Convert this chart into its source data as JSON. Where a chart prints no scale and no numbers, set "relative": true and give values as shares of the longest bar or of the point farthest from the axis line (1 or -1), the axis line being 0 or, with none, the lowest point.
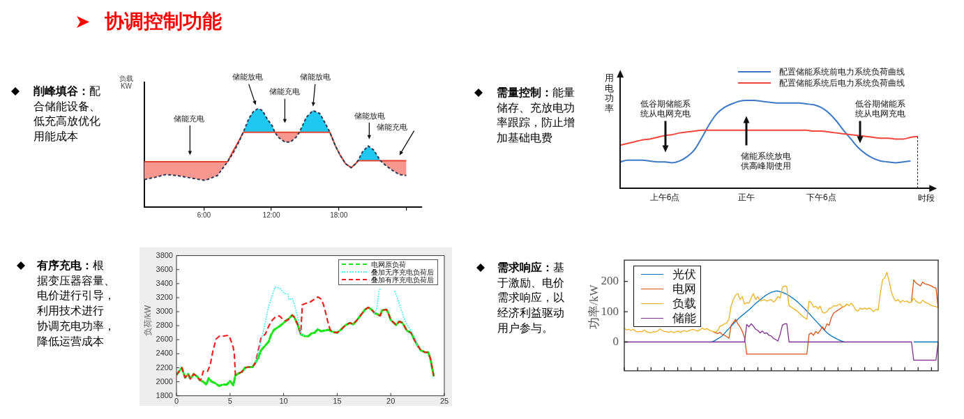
{
  "chart_data": [
    {
      "type": "other",
      "title": "协调控制功能"
    },
    {
      "type": "line",
      "title": "削峰填谷：配合储能设备、低充高放优化用能成本",
      "ylabel": "负载 KW",
      "relative": true,
      "x": [
        0.7,
        1.6,
        2.6,
        3.6,
        4.6,
        5.6,
        6.1,
        7.2,
        8.1,
        8.6,
        9.1,
        9.5,
        10.0,
        10.4,
        10.8,
        11.2,
        11.6,
        12.1,
        12.3,
        12.6,
        13.2,
        13.7,
        14.2,
        14.5,
        15.1,
        15.7,
        16.3,
        16.8,
        17.2,
        17.7,
        18.1,
        18.6,
        19.1,
        19.5,
        19.7,
        20.1,
        20.6,
        21.1,
        21.7,
        22.2,
        22.8,
        23.4,
        24.0
      ],
      "xlim": [
        0.7,
        25.4
      ],
      "xticks": [
        {
          "value": 6,
          "label": "6:00"
        },
        {
          "value": 12,
          "label": "12:00"
        },
        {
          "value": 18,
          "label": "18:00"
        },
        {
          "value": 24,
          "label": null
        }
      ],
      "series": [
        {
          "type": "area",
          "color": "#1ec8f0",
          "values": [
            null,
            null,
            null,
            null,
            null,
            null,
            null,
            null,
            null,
            null,
            null,
            0.76,
            0.9,
            0.97,
            1,
            0.98,
            0.9,
            0.82,
            0.76,
            null,
            null,
            null,
            null,
            0.76,
            0.91,
            0.98,
            0.95,
            0.85,
            0.76,
            null,
            null,
            null,
            null,
            null,
            0.47,
            0.56,
            0.62,
            0.58,
            0.47,
            null,
            null,
            null,
            null
          ]
        },
        {
          "type": "area",
          "color": "#f79890",
          "values": [
            0.46,
            0.46,
            0.46,
            0.46,
            0.46,
            0.46,
            0.46,
            0.46,
            0.46,
            0.57,
            0.67,
            0.76,
            null,
            null,
            null,
            null,
            null,
            null,
            0.76,
            0.76,
            0.76,
            0.76,
            0.76,
            0.76,
            null,
            null,
            null,
            null,
            null,
            null,
            null,
            null,
            null,
            null,
            null,
            null,
            null,
            null,
            0.47,
            0.47,
            0.47,
            0.47,
            0.47
          ]
        },
        {
          "type": "line",
          "color": "#e8432f",
          "values": [
            0.46,
            0.46,
            0.46,
            0.46,
            0.46,
            0.46,
            0.46,
            0.46,
            0.46,
            0.57,
            0.67,
            0.76,
            0.76,
            0.76,
            0.76,
            0.76,
            0.76,
            0.76,
            0.76,
            0.76,
            0.76,
            0.76,
            0.76,
            0.76,
            0.76,
            0.76,
            0.76,
            0.76,
            0.76,
            0.62,
            0.53,
            0.44,
            0.4,
            0.44,
            0.47,
            0.47,
            0.47,
            0.47,
            0.47,
            0.47,
            0.47,
            0.47,
            0.47
          ]
        },
        {
          "type": "line",
          "color": "#2a3654",
          "line_style": "dashed",
          "values": [
            0.28,
            0.3,
            0.33,
            0.32,
            0.3,
            0.28,
            0.27,
            0.32,
            0.46,
            0.55,
            0.66,
            0.76,
            0.9,
            0.97,
            1,
            0.98,
            0.9,
            0.82,
            0.76,
            0.71,
            0.66,
            0.66,
            0.71,
            0.76,
            0.91,
            0.98,
            0.95,
            0.85,
            0.76,
            0.62,
            0.53,
            0.44,
            0.4,
            0.44,
            0.47,
            0.56,
            0.62,
            0.58,
            0.47,
            0.42,
            0.37,
            0.33,
            0.32
          ]
        }
      ],
      "annotations": [
        "储能充电",
        "储能放电",
        "储能充电",
        "储能放电",
        "储能放电",
        "储能充电"
      ]
    },
    {
      "type": "line",
      "title": "需量控制：能量储存、充放电功率跟踪，防止增加基础电费",
      "ylabel": "用电功率",
      "xlabel": "时段",
      "relative": true,
      "categories": [
        null,
        null,
        null,
        null,
        null,
        null,
        "上午6点",
        null,
        null,
        null,
        null,
        null,
        null,
        null,
        null,
        null,
        null,
        "正午",
        null,
        null,
        null,
        null,
        null,
        null,
        null,
        null,
        null,
        "下午6点",
        null,
        null,
        null,
        null,
        null,
        null,
        null,
        null,
        null,
        null,
        null,
        null,
        null
      ],
      "legend": "top right",
      "series": [
        {
          "name": "配置储能系统前电力系统负荷曲线",
          "color": "#3b78c5",
          "values": [
            0.3,
            0.32,
            0.32,
            0.32,
            0.31,
            0.3,
            0.3,
            0.29,
            0.31,
            0.36,
            0.44,
            0.58,
            0.73,
            0.85,
            0.92,
            0.96,
            0.99,
            1,
            1,
            0.99,
            0.98,
            0.97,
            0.97,
            0.97,
            0.97,
            0.96,
            0.95,
            0.92,
            0.86,
            0.77,
            0.66,
            0.56,
            0.46,
            0.39,
            0.34,
            0.31,
            0.3,
            0.29,
            0.3,
            0.31,
            null
          ]
        },
        {
          "name": "配置储能系统后电力系统负荷曲线",
          "color": "#f0453a",
          "values": [
            0.49,
            0.51,
            0.53,
            0.55,
            0.56,
            0.58,
            0.6,
            0.61,
            0.63,
            0.64,
            0.65,
            0.66,
            0.66,
            0.66,
            0.66,
            0.66,
            0.66,
            0.66,
            0.66,
            0.66,
            0.66,
            0.66,
            0.66,
            0.66,
            0.66,
            0.66,
            0.65,
            0.65,
            0.64,
            0.63,
            0.62,
            0.61,
            0.6,
            0.59,
            0.58,
            0.57,
            0.57,
            0.56,
            0.56,
            0.58,
            0.59
          ]
        }
      ],
      "annotations": [
        "低谷期储能系统从电网充电",
        "储能系统放电供高峰期使用",
        "低谷期储能系统从电网充电"
      ]
    },
    {
      "type": "line",
      "title": "有序充电：根据变压器容量、电价进行引导，利用技术进行协调充电功率，降低运营成本",
      "ylabel": "负荷/kW",
      "xlim": [
        0,
        25
      ],
      "xticks": [
        0,
        5,
        10,
        15,
        20,
        25
      ],
      "ylim": [
        1800,
        3800
      ],
      "yticks": [
        1800,
        2000,
        2200,
        2400,
        2600,
        2800,
        3000,
        3200,
        3400,
        3600,
        3800
      ],
      "legend": "top right",
      "series": [
        {
          "name": "电网原负荷",
          "color": "#19e619",
          "line_style": "dashed",
          "x": [
            0,
            0.5,
            0.8,
            1.1,
            1.3,
            1.6,
            1.9,
            2.2,
            2.5,
            2.8,
            3.0,
            3.3,
            3.6,
            4.0,
            4.3,
            4.7,
            5.0,
            5.3,
            5.5,
            5.8,
            6.1,
            6.4,
            6.7,
            7.1,
            7.4,
            7.6,
            7.9,
            8.3,
            8.6,
            8.8,
            9.1,
            9.6,
            10.0,
            10.4,
            10.8,
            11.0,
            11.3,
            11.6,
            12.0,
            12.3,
            12.6,
            12.9,
            13.2,
            13.5,
            13.8,
            14.2,
            14.6,
            15.0,
            15.4,
            15.8,
            16.2,
            16.5,
            16.9,
            17.3,
            17.6,
            17.9,
            18.2,
            18.5,
            18.8,
            19.0,
            19.2,
            19.6,
            19.8,
            20.0,
            20.3,
            20.5,
            20.8,
            21.1,
            21.5,
            21.9,
            22.2,
            22.5,
            22.8,
            23.2,
            23.5,
            23.7,
            24.0
          ],
          "values": [
            2100,
            2200,
            2060,
            2110,
            2040,
            2110,
            2080,
            2020,
            2000,
            1960,
            2050,
            2000,
            1980,
            1940,
            1960,
            1960,
            2010,
            1950,
            2090,
            2120,
            2140,
            2200,
            2210,
            2210,
            2280,
            2330,
            2450,
            2520,
            2570,
            2660,
            2740,
            2790,
            2840,
            2890,
            2950,
            2920,
            2820,
            2680,
            2650,
            2650,
            2690,
            2700,
            2750,
            2720,
            2730,
            2740,
            2710,
            2700,
            2750,
            2810,
            2840,
            2820,
            2890,
            2970,
            3030,
            3060,
            3030,
            2980,
            2960,
            2940,
            3020,
            3030,
            2970,
            2880,
            2840,
            2810,
            2860,
            2840,
            2730,
            2700,
            2600,
            2520,
            2450,
            2420,
            2420,
            2330,
            2090
          ]
        },
        {
          "name": "叠加无序充电负荷后",
          "color": "#4ff0f5",
          "line_style": "dotted",
          "x": [
            7.4,
            7.7,
            8.0,
            8.3,
            8.6,
            8.9,
            9.2,
            9.6,
            9.8,
            10.1,
            10.4,
            10.5,
            10.8,
            11.0,
            11.2,
            11.4,
            11.6,
            12.0,
            12.3,
            18.5,
            18.7,
            18.9,
            19.0,
            19.6,
            20.4,
            20.8,
            21.1,
            21.4,
            21.7,
            22.0,
            22.3,
            22.5
          ],
          "values": [
            2280,
            2450,
            2650,
            2850,
            3080,
            3210,
            3350,
            3340,
            3310,
            3260,
            3250,
            3170,
            3190,
            3110,
            2990,
            2870,
            2690,
            2650,
            null,
            2980,
            3050,
            3290,
            3330,
            null,
            3290,
            3110,
            2970,
            2840,
            2770,
            2700,
            2620,
            2520
          ]
        },
        {
          "name": "叠加有序充电负荷后",
          "color": "#f01e1e",
          "line_style": "dashed",
          "x": [
            0,
            0.5,
            0.8,
            1.1,
            1.3,
            1.6,
            1.9,
            2.2,
            2.3,
            2.5,
            2.7,
            2.9,
            3.15,
            3.4,
            3.7,
            4.0,
            4.35,
            4.7,
            4.9,
            5.1,
            5.3,
            5.4,
            5.5,
            5.8,
            6.1,
            6.4,
            6.7,
            7.1,
            7.4,
            7.5,
            7.7,
            7.9,
            8.3,
            8.6,
            8.9,
            9.2,
            9.6,
            9.8,
            10.1,
            10.4,
            10.8,
            11.0,
            11.3,
            11.6,
            11.75,
            12.1,
            12.5,
            12.9,
            13.2,
            13.5,
            13.7,
            13.9,
            14.1,
            14.35,
            14.6,
            15.0,
            15.4,
            15.8,
            16.2,
            16.5,
            16.9,
            17.3,
            17.6,
            17.9,
            18.2,
            18.5,
            18.8,
            19.0,
            19.2,
            19.6,
            19.8,
            20.0,
            20.3,
            20.5,
            20.8,
            21.1,
            21.5,
            21.9,
            22.2,
            22.5,
            22.8,
            23.2,
            23.5,
            23.7,
            24.0
          ],
          "values": [
            2100,
            2200,
            2060,
            2110,
            2040,
            2110,
            2080,
            2020,
            2040,
            2150,
            2160,
            2150,
            2240,
            2440,
            2610,
            2650,
            2650,
            2660,
            2660,
            2580,
            2490,
            2390,
            2100,
            2120,
            2140,
            2200,
            2210,
            2210,
            2280,
            2360,
            2490,
            2630,
            2680,
            2790,
            2870,
            2920,
            2940,
            2910,
            2870,
            2880,
            2950,
            2920,
            2820,
            2690,
            3100,
            3120,
            3140,
            3180,
            3210,
            3180,
            3110,
            3000,
            2870,
            2740,
            2710,
            2700,
            2750,
            2810,
            2840,
            2820,
            2890,
            2970,
            3030,
            3060,
            3030,
            2980,
            2960,
            2940,
            3020,
            3030,
            2970,
            2880,
            2840,
            2810,
            2860,
            2840,
            2730,
            2700,
            2600,
            2520,
            2450,
            2420,
            2420,
            2330,
            2090
          ]
        }
      ]
    },
    {
      "type": "line",
      "title": "需求响应：基于激励、电价需求响应，以经济利益驱动用户参与。",
      "ylabel": "功率/kW",
      "categories": [
        null,
        null,
        null,
        null,
        null,
        null,
        null,
        null,
        null,
        null,
        null,
        null,
        null,
        null,
        null,
        null,
        null,
        null,
        null,
        null,
        null,
        null,
        null,
        null,
        null,
        null,
        null,
        null,
        null,
        null,
        null,
        null,
        null,
        null,
        null,
        null,
        null,
        null,
        null,
        null,
        null,
        null,
        null,
        null,
        null,
        null,
        null,
        null,
        null,
        null,
        null,
        null,
        null,
        null,
        null,
        null,
        null,
        null,
        null,
        null,
        null,
        null,
        null,
        null,
        null,
        null,
        null,
        null,
        null,
        null,
        null,
        null,
        null,
        null,
        null,
        null,
        null,
        null,
        null,
        null,
        null,
        null,
        null,
        null,
        null,
        null,
        null,
        null,
        null,
        null,
        null,
        null,
        null,
        null,
        null,
        null,
        null,
        null,
        null,
        null,
        null,
        null,
        null,
        null,
        null,
        null,
        null,
        null,
        null,
        null,
        null,
        null,
        null,
        null,
        null,
        null,
        null,
        null,
        null,
        null,
        null,
        null,
        null,
        null,
        null,
        null,
        null,
        null,
        null,
        null,
        null,
        null,
        null,
        null,
        null,
        null,
        null,
        null,
        null,
        null,
        null,
        null
      ],
      "ylim": [
        -95,
        270
      ],
      "yticks": [
        0,
        100,
        200
      ],
      "legend": "top left",
      "series": [
        {
          "name": "光伏",
          "color": "#0072bd",
          "values": [
            null,
            null,
            null,
            null,
            null,
            null,
            null,
            null,
            null,
            null,
            null,
            null,
            null,
            null,
            null,
            null,
            null,
            null,
            null,
            null,
            null,
            null,
            null,
            null,
            null,
            null,
            null,
            null,
            null,
            null,
            null,
            null,
            null,
            null,
            null,
            null,
            null,
            null,
            null,
            0,
            2,
            6,
            11,
            15,
            20,
            28,
            37,
            44,
            52,
            60,
            68,
            75,
            82,
            88,
            94,
            100,
            106,
            113,
            120,
            127,
            133,
            139,
            145,
            151,
            156,
            160,
            164,
            166,
            168,
            168,
            166,
            164,
            161,
            157,
            153,
            148,
            143,
            137,
            131,
            124,
            117,
            110,
            102,
            94,
            86,
            78,
            70,
            62,
            54,
            46,
            38,
            31,
            25,
            20,
            16,
            12,
            8,
            5,
            2,
            0,
            null,
            null,
            null,
            null,
            null,
            null,
            null,
            null,
            null,
            null,
            null,
            null,
            null,
            null,
            null,
            null,
            null,
            null,
            null,
            null,
            null,
            null,
            null,
            null,
            null,
            null,
            null,
            null,
            null,
            null,
            0,
            0,
            0,
            0,
            0,
            0,
            0,
            0,
            0,
            0,
            0,
            0
          ]
        },
        {
          "name": "电网",
          "color": "#d95319",
          "values": [
            null,
            null,
            null,
            null,
            null,
            null,
            null,
            null,
            null,
            null,
            null,
            null,
            null,
            null,
            null,
            null,
            null,
            null,
            null,
            null,
            null,
            null,
            null,
            null,
            null,
            null,
            null,
            null,
            null,
            null,
            null,
            null,
            null,
            null,
            null,
            null,
            null,
            null,
            null,
            null,
            33,
            30,
            28,
            32,
            25,
            22,
            18,
            12,
            55,
            65,
            75,
            60,
            50,
            35,
            15,
            -40,
            -40,
            -40,
            -40,
            -40,
            -40,
            -40,
            -40,
            -40,
            -40,
            -40,
            -40,
            -40,
            -40,
            -40,
            -40,
            -40,
            -40,
            -40,
            -40,
            -40,
            -40,
            -40,
            -40,
            -40,
            -40,
            -40,
            -40,
            25,
            30,
            22,
            35,
            28,
            38,
            50,
            40,
            60,
            55,
            80,
            95,
            100,
            105,
            110,
            115,
            118,
            125,
            null,
            null,
            null,
            null,
            null,
            null,
            null,
            null,
            null,
            null,
            null,
            null,
            null,
            null,
            null,
            null,
            null,
            null,
            null,
            null,
            null,
            null,
            null,
            null,
            null,
            null,
            null,
            null,
            132,
            205,
            195,
            190,
            185,
            198,
            192,
            190,
            188,
            185,
            180,
            178,
            113
          ]
        },
        {
          "name": "负载",
          "color": "#edb120",
          "values": [
            45,
            40,
            42,
            38,
            42,
            36,
            33,
            35,
            34,
            40,
            33,
            32,
            30,
            34,
            33,
            36,
            43,
            38,
            35,
            34,
            32,
            35,
            31,
            33,
            36,
            32,
            35,
            38,
            34,
            37,
            40,
            42,
            38,
            36,
            40,
            46,
            41,
            44,
            40,
            36,
            35,
            32,
            38,
            52,
            55,
            60,
            62,
            75,
            120,
            140,
            155,
            160,
            140,
            150,
            125,
            130,
            128,
            145,
            160,
            140,
            150,
            135,
            138,
            140,
            135,
            138,
            140,
            132,
            138,
            150,
            145,
            180,
            185,
            183,
            120,
            115,
            110,
            105,
            100,
            92,
            85,
            80,
            75,
            135,
            130,
            115,
            118,
            110,
            118,
            98,
            95,
            100,
            110,
            112,
            120,
            118,
            122,
            125,
            115,
            118,
            125,
            120,
            128,
            118,
            105,
            102,
            112,
            108,
            112,
            108,
            112,
            108,
            100,
            108,
            105,
            160,
            205,
            212,
            230,
            200,
            165,
            145,
            135,
            140,
            130,
            137,
            133,
            135,
            130,
            132,
            145,
            135,
            130,
            128,
            138,
            132,
            128,
            125,
            120,
            118,
            117,
            113
          ]
        },
        {
          "name": "储能",
          "color": "#7e2f8e",
          "values": [
            0,
            0,
            0,
            0,
            0,
            0,
            0,
            0,
            0,
            0,
            0,
            0,
            0,
            0,
            0,
            0,
            0,
            0,
            0,
            0,
            0,
            0,
            0,
            0,
            0,
            0,
            0,
            0,
            0,
            0,
            0,
            0,
            0,
            0,
            0,
            0,
            0,
            0,
            0,
            0,
            0,
            0,
            0,
            0,
            0,
            0,
            0,
            0,
            0,
            0,
            0,
            0,
            0,
            0,
            0,
            58,
            50,
            60,
            52,
            42,
            38,
            30,
            36,
            28,
            30,
            22,
            20,
            12,
            8,
            3,
            25,
            55,
            60,
            60,
            0,
            0,
            0,
            0,
            0,
            0,
            0,
            0,
            0,
            0,
            0,
            0,
            0,
            0,
            0,
            0,
            0,
            0,
            0,
            0,
            0,
            0,
            0,
            0,
            0,
            0,
            0,
            0,
            0,
            0,
            0,
            0,
            0,
            0,
            0,
            0,
            0,
            0,
            0,
            0,
            0,
            0,
            0,
            0,
            0,
            0,
            0,
            0,
            0,
            0,
            0,
            0,
            0,
            0,
            0,
            0,
            -60,
            -60,
            -60,
            -60,
            -60,
            -60,
            -60,
            -60,
            -60,
            -60,
            -60,
            0
          ]
        }
      ]
    }
  ]
}
